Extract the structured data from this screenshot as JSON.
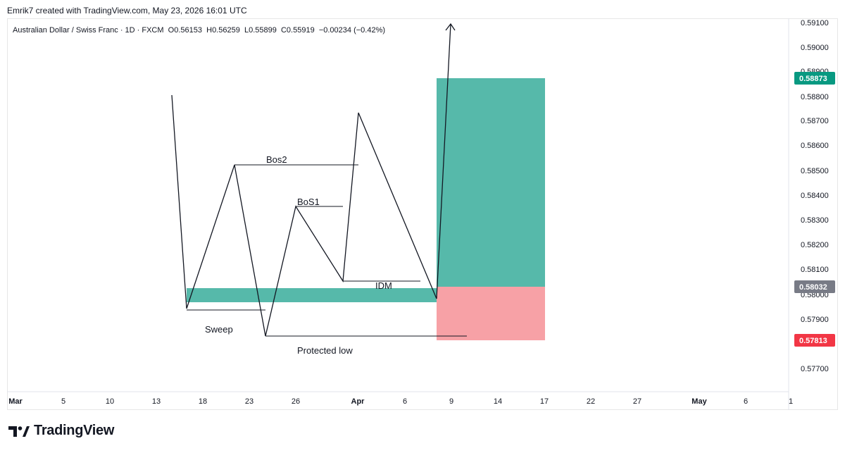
{
  "header": {
    "credit": "Emrik7 created with TradingView.com, May 23, 2026 16:01 UTC"
  },
  "legend": {
    "symbol": "Australian Dollar / Swiss Franc · 1D · FXCM",
    "open": "O0.56153",
    "high": "H0.56259",
    "low": "L0.55899",
    "close": "C0.55919",
    "change": "−0.00234 (−0.42%)"
  },
  "price_axis": {
    "ticks": [
      "0.59100",
      "0.59000",
      "0.58900",
      "0.58800",
      "0.58700",
      "0.58600",
      "0.58500",
      "0.58400",
      "0.58300",
      "0.58200",
      "0.58100",
      "0.58000",
      "0.57900",
      "0.57800",
      "0.57700"
    ],
    "badges": [
      {
        "label": "0.58873",
        "color": "#089981"
      },
      {
        "label": "0.58032",
        "color": "#787b86"
      },
      {
        "label": "0.57813",
        "color": "#f23645"
      }
    ]
  },
  "time_axis": {
    "ticks": [
      "Mar",
      "5",
      "10",
      "13",
      "18",
      "23",
      "26",
      "Apr",
      "6",
      "9",
      "14",
      "17",
      "22",
      "27",
      "May",
      "6",
      "1"
    ]
  },
  "annotations": {
    "bos2": "Bos2",
    "bos1": "BoS1",
    "idm": "IDM",
    "sweep": "Sweep",
    "protected_low": "Protected low"
  },
  "colors": {
    "zone": "#56b9aa",
    "profit": "#56b9aa",
    "stop": "#f7a1a6",
    "line": "#131722"
  },
  "brand": {
    "name": "TradingView",
    "logo_icon": "tradingview-logo-icon"
  }
}
